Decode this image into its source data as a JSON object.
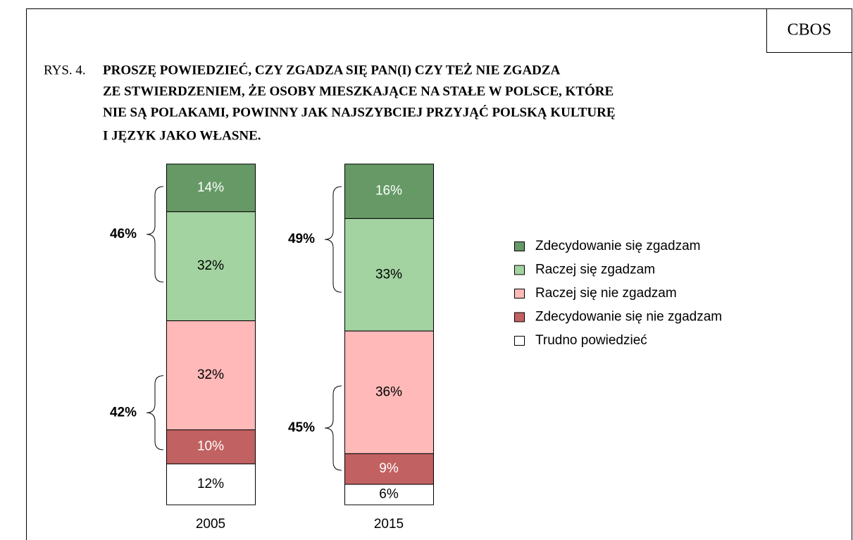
{
  "chart_data": {
    "type": "stacked_bar",
    "source": "CBOS",
    "title_prefix": "RYS. 4.",
    "title": [
      "PROSZĘ POWIEDZIEĆ, CZY ZGADZA SIĘ PAN(I) CZY TEŻ NIE ZGADZA",
      "ZE STWIERDZENIEM, ŻE OSOBY MIESZKAJĄCE NA STAŁE W POLSCE, KTÓRE",
      "NIE SĄ POLAKAMI, POWINNY JAK NAJSZYBCIEJ PRZYJĄĆ POLSKĄ KULTURĘ",
      "I JĘZYK JAKO WŁASNE."
    ],
    "categories": [
      "2005",
      "2015"
    ],
    "ylim": [
      0,
      100
    ],
    "series": [
      {
        "name": "Zdecydowanie się zgadzam",
        "color": "#669966",
        "label_color": "#ffffff",
        "values": [
          14,
          16
        ],
        "value_labels": [
          "14%",
          "16%"
        ]
      },
      {
        "name": "Raczej się zgadzam",
        "color": "#a3d3a0",
        "label_color": "#000000",
        "values": [
          32,
          33
        ],
        "value_labels": [
          "32%",
          "33%"
        ]
      },
      {
        "name": "Raczej się nie zgadzam",
        "color": "#ffb9b9",
        "label_color": "#000000",
        "values": [
          32,
          36
        ],
        "value_labels": [
          "32%",
          "36%"
        ]
      },
      {
        "name": "Zdecydowanie się nie zgadzam",
        "color": "#c26161",
        "label_color": "#ffffff",
        "values": [
          10,
          9
        ],
        "value_labels": [
          "10%",
          "9%"
        ]
      },
      {
        "name": "Trudno powiedzieć",
        "color": "#ffffff",
        "label_color": "#000000",
        "values": [
          12,
          6
        ],
        "value_labels": [
          "12%",
          "6%"
        ]
      }
    ],
    "brace_labels": [
      [
        "46%",
        "42%"
      ],
      [
        "49%",
        "45%"
      ]
    ]
  }
}
